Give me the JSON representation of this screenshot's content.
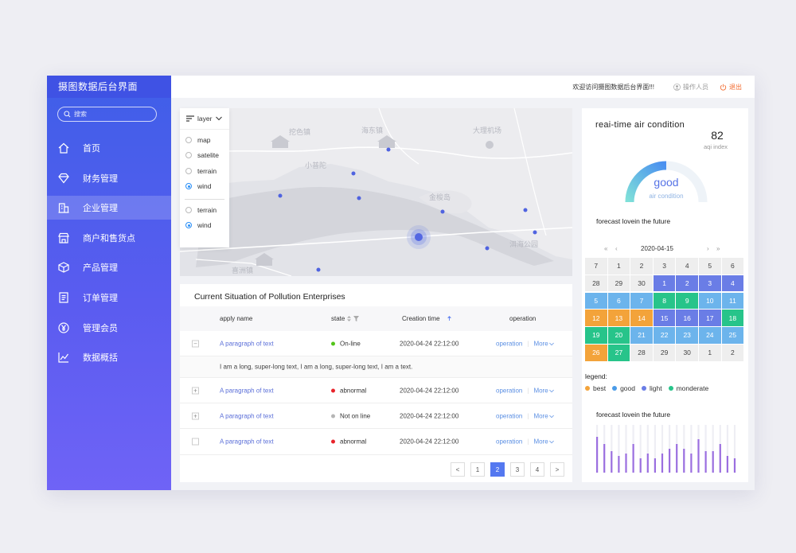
{
  "app": {
    "title": "摄图数据后台界面",
    "search_placeholder": "搜索",
    "nav": [
      {
        "label": "首页",
        "icon": "home-icon"
      },
      {
        "label": "财务管理",
        "icon": "diamond-icon"
      },
      {
        "label": "企业管理",
        "icon": "building-icon",
        "active": true
      },
      {
        "label": "商户和售货点",
        "icon": "store-icon"
      },
      {
        "label": "产品管理",
        "icon": "cube-icon"
      },
      {
        "label": "订单管理",
        "icon": "document-icon"
      },
      {
        "label": "管理会员",
        "icon": "yen-icon"
      },
      {
        "label": "数据概括",
        "icon": "chart-icon"
      }
    ]
  },
  "topbar": {
    "welcome": "欢迎访问摄图数据后台界面!!!",
    "user": "操作人员",
    "logout": "退出"
  },
  "map": {
    "labels": [
      "挖色镇",
      "海东镇",
      "大理机场",
      "小普陀",
      "金梭岛",
      "洱海公园",
      "喜洲镇"
    ],
    "layer": {
      "title": "layer",
      "options_group1": [
        {
          "label": "map",
          "checked": false
        },
        {
          "label": "satelite",
          "checked": false
        },
        {
          "label": "terrain",
          "checked": false
        },
        {
          "label": "wind",
          "checked": true
        }
      ],
      "options_group2": [
        {
          "label": "terrain",
          "checked": false
        },
        {
          "label": "wind",
          "checked": true
        }
      ]
    }
  },
  "table": {
    "title": "Current Situation of Pollution Enterprises",
    "headers": {
      "apply_name": "apply name",
      "state": "state",
      "creation_time": "Creation time",
      "operation": "operation"
    },
    "rows": [
      {
        "expander": "−",
        "name": "A paragraph of text",
        "state": "On-line",
        "state_color": "#52c41a",
        "time": "2020-04-24  22:12:00",
        "op": "operation",
        "more": "More"
      },
      {
        "expander": "+",
        "name": "A paragraph of text",
        "state": "abnormal",
        "state_color": "#e8242b",
        "time": "2020-04-24  22:12:00",
        "op": "operation",
        "more": "More"
      },
      {
        "expander": "+",
        "name": "A paragraph of text",
        "state": "Not on line",
        "state_color": "#b5b5b5",
        "time": "2020-04-24  22:12:00",
        "op": "operation",
        "more": "More"
      },
      {
        "expander": "",
        "name": "A paragraph of text",
        "state": "abnormal",
        "state_color": "#e8242b",
        "time": "2020-04-24  22:12:00",
        "op": "operation",
        "more": "More"
      }
    ],
    "detail": "I am a long, super-long text, I am a long, super-long text, I am a text.",
    "pagination": {
      "prev": "<",
      "pages": [
        "1",
        "2",
        "3",
        "4"
      ],
      "active": "2",
      "next": ">"
    }
  },
  "air": {
    "title": "reai-time air condition",
    "aqi_value": "82",
    "aqi_label": "aqi index",
    "gauge_word": "good",
    "gauge_sub": "air condition",
    "gauge_level": 0.5,
    "forecast_title_1": "forecast lovein the future",
    "calendar": {
      "date": "2020-04-15",
      "nav": {
        "prev_year": "«",
        "prev_month": "‹",
        "next_month": "›",
        "next_year": "»"
      },
      "colors": {
        "best": "#f3a33a",
        "good": "#6cb4ec",
        "light": "#6a7de6",
        "moderate": "#27c48a",
        "none": "#eeeeee"
      },
      "cells": [
        [
          "7",
          "none"
        ],
        [
          "1",
          "none"
        ],
        [
          "2",
          "none"
        ],
        [
          "3",
          "none"
        ],
        [
          "4",
          "none"
        ],
        [
          "5",
          "none"
        ],
        [
          "6",
          "none"
        ],
        [
          "28",
          "none"
        ],
        [
          "29",
          "none"
        ],
        [
          "30",
          "none"
        ],
        [
          "1",
          "light"
        ],
        [
          "2",
          "light"
        ],
        [
          "3",
          "light"
        ],
        [
          "4",
          "light"
        ],
        [
          "5",
          "good"
        ],
        [
          "6",
          "good"
        ],
        [
          "7",
          "good"
        ],
        [
          "8",
          "moderate"
        ],
        [
          "9",
          "moderate"
        ],
        [
          "10",
          "good"
        ],
        [
          "11",
          "good"
        ],
        [
          "12",
          "best"
        ],
        [
          "13",
          "best"
        ],
        [
          "14",
          "best"
        ],
        [
          "15",
          "light"
        ],
        [
          "16",
          "light"
        ],
        [
          "17",
          "light"
        ],
        [
          "18",
          "moderate"
        ],
        [
          "19",
          "moderate"
        ],
        [
          "20",
          "moderate"
        ],
        [
          "21",
          "good"
        ],
        [
          "22",
          "good"
        ],
        [
          "23",
          "good"
        ],
        [
          "24",
          "good"
        ],
        [
          "25",
          "good"
        ],
        [
          "26",
          "best"
        ],
        [
          "27",
          "moderate"
        ],
        [
          "28",
          "none"
        ],
        [
          "29",
          "none"
        ],
        [
          "30",
          "none"
        ],
        [
          "1",
          "none"
        ],
        [
          "2",
          "none"
        ]
      ]
    },
    "legend_title": "legend:",
    "legend": [
      {
        "label": "best",
        "color": "#f3a33a"
      },
      {
        "label": "good",
        "color": "#4a9be8"
      },
      {
        "label": "light",
        "color": "#6a7de6"
      },
      {
        "label": "monderate",
        "color": "#27c48a"
      }
    ],
    "forecast_title_2": "forecast lovein the future",
    "forecast_bars": [
      0.75,
      0.6,
      0.45,
      0.35,
      0.4,
      0.6,
      0.3,
      0.4,
      0.3,
      0.4,
      0.5,
      0.6,
      0.5,
      0.4,
      0.7,
      0.45,
      0.45,
      0.6,
      0.35,
      0.3
    ]
  }
}
